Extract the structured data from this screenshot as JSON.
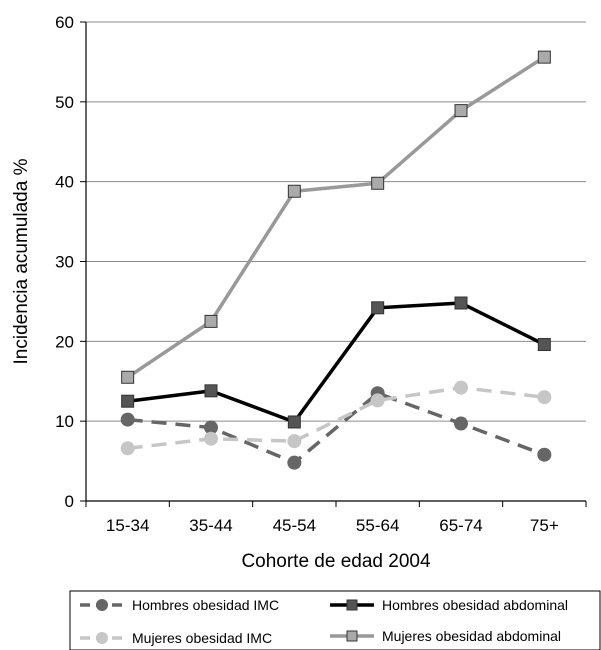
{
  "chart_data": {
    "type": "line",
    "title": "",
    "xlabel": "Cohorte de edad 2004",
    "ylabel": "Incidencia acumulada %",
    "categories": [
      "15-34",
      "35-44",
      "45-54",
      "55-64",
      "65-74",
      "75+"
    ],
    "ylim": [
      0,
      60
    ],
    "yticks": [
      "0",
      "10",
      "20",
      "30",
      "40",
      "50",
      "60"
    ],
    "grid": true,
    "legend_position": "bottom",
    "series": [
      {
        "name": "Hombres obesidad IMC",
        "values": [
          10.2,
          9.2,
          4.8,
          13.5,
          9.7,
          5.8
        ],
        "color": "#666666",
        "dash": "dashed",
        "marker": "circle"
      },
      {
        "name": "Hombres obesidad abdominal",
        "values": [
          12.5,
          13.8,
          9.9,
          24.2,
          24.8,
          19.6
        ],
        "color": "#000000",
        "dash": "solid",
        "marker": "square",
        "marker_color": "#555555"
      },
      {
        "name": "Mujeres obesidad IMC",
        "values": [
          6.6,
          7.8,
          7.5,
          12.6,
          14.2,
          13.0
        ],
        "color": "#c6c6c6",
        "dash": "dashed",
        "marker": "circle"
      },
      {
        "name": "Mujeres obesidad abdominal",
        "values": [
          15.5,
          22.5,
          38.8,
          39.8,
          48.9,
          55.6
        ],
        "color": "#999999",
        "dash": "solid",
        "marker": "square",
        "marker_color": "#aaaaaa"
      }
    ]
  }
}
